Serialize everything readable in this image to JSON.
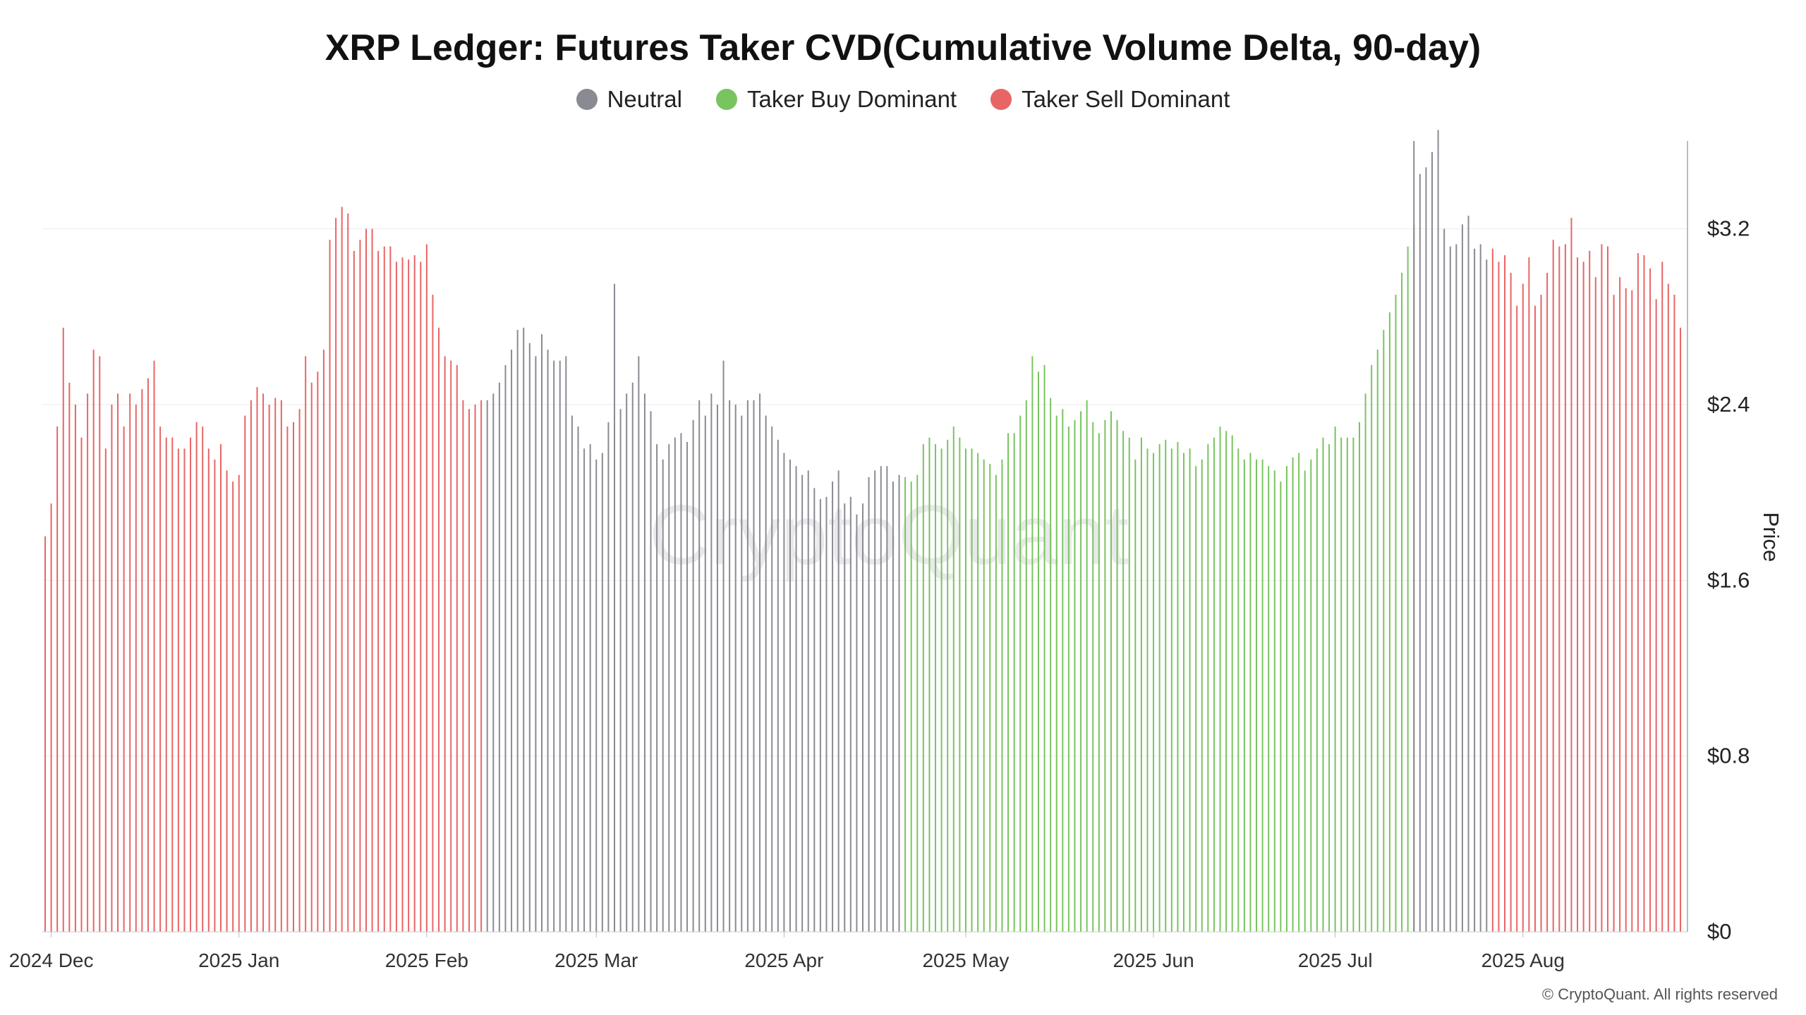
{
  "chart_data": {
    "type": "bar",
    "title": "XRP Ledger: Futures Taker CVD(Cumulative Volume Delta, 90-day)",
    "ylabel": "Price",
    "xlabel": "",
    "ylim": [
      0,
      3.6
    ],
    "yticks": [
      {
        "v": 0,
        "label": "$0"
      },
      {
        "v": 0.8,
        "label": "$0.8"
      },
      {
        "v": 1.6,
        "label": "$1.6"
      },
      {
        "v": 2.4,
        "label": "$2.4"
      },
      {
        "v": 3.2,
        "label": "$3.2"
      }
    ],
    "xticks": [
      {
        "date": "2024-12-01",
        "label": "2024 Dec"
      },
      {
        "date": "2025-01-01",
        "label": "2025 Jan"
      },
      {
        "date": "2025-02-01",
        "label": "2025 Feb"
      },
      {
        "date": "2025-03-01",
        "label": "2025 Mar"
      },
      {
        "date": "2025-04-01",
        "label": "2025 Apr"
      },
      {
        "date": "2025-05-01",
        "label": "2025 May"
      },
      {
        "date": "2025-06-01",
        "label": "2025 Jun"
      },
      {
        "date": "2025-07-01",
        "label": "2025 Jul"
      },
      {
        "date": "2025-08-01",
        "label": "2025 Aug"
      }
    ],
    "grid": true,
    "legend_position": "top-center",
    "series": [
      {
        "name": "Neutral",
        "color": "#8a8a93"
      },
      {
        "name": "Taker Buy Dominant",
        "color": "#78c45f"
      },
      {
        "name": "Taker Sell Dominant",
        "color": "#e86565"
      }
    ],
    "segments": [
      {
        "series": "Taker Sell Dominant",
        "start": "2024-11-30",
        "values": [
          1.8,
          1.95,
          2.3,
          2.75,
          2.5,
          2.4,
          2.25,
          2.45,
          2.65,
          2.62,
          2.2,
          2.4,
          2.45,
          2.3,
          2.45,
          2.4,
          2.47,
          2.52,
          2.6,
          2.3,
          2.25,
          2.25,
          2.2,
          2.2,
          2.25,
          2.32,
          2.3,
          2.2,
          2.15,
          2.22,
          2.1,
          2.05,
          2.08,
          2.35,
          2.42,
          2.48,
          2.45,
          2.4,
          2.43,
          2.42,
          2.3,
          2.32,
          2.38,
          2.62,
          2.5,
          2.55,
          2.65,
          3.15,
          3.25,
          3.3,
          3.27,
          3.1,
          3.15,
          3.2,
          3.2,
          3.1,
          3.12,
          3.12,
          3.05,
          3.07,
          3.06,
          3.08,
          3.05,
          3.13,
          2.9,
          2.75,
          2.62,
          2.6,
          2.58,
          2.42,
          2.38,
          2.4,
          2.42
        ]
      },
      {
        "series": "Neutral",
        "start": "2025-02-11",
        "values": [
          2.42,
          2.45,
          2.5,
          2.58,
          2.65,
          2.74,
          2.75,
          2.68,
          2.62,
          2.72,
          2.65,
          2.6,
          2.6,
          2.62,
          2.35,
          2.3,
          2.2,
          2.22,
          2.15,
          2.18,
          2.32,
          2.95,
          2.38,
          2.45,
          2.5,
          2.62,
          2.45,
          2.37,
          2.22,
          2.15,
          2.22,
          2.25,
          2.27,
          2.23,
          2.33,
          2.42,
          2.35,
          2.45,
          2.4,
          2.6,
          2.42,
          2.4,
          2.35,
          2.42,
          2.42,
          2.45,
          2.35,
          2.3,
          2.24,
          2.18,
          2.15,
          2.12,
          2.08,
          2.1,
          2.02,
          1.97,
          1.98,
          2.05,
          2.1,
          1.95,
          1.98,
          1.9,
          1.95,
          2.07,
          2.1,
          2.12,
          2.12,
          2.05,
          2.08
        ]
      },
      {
        "series": "Taker Buy Dominant",
        "start": "2025-04-21",
        "values": [
          2.07,
          2.05,
          2.08,
          2.22,
          2.25,
          2.22,
          2.2,
          2.24,
          2.3,
          2.25,
          2.2,
          2.2,
          2.18,
          2.15,
          2.13,
          2.08,
          2.15,
          2.27,
          2.27,
          2.35,
          2.42,
          2.62,
          2.55,
          2.58,
          2.43,
          2.35,
          2.38,
          2.3,
          2.33,
          2.37,
          2.42,
          2.32,
          2.27,
          2.33,
          2.37,
          2.33,
          2.28,
          2.25,
          2.15,
          2.25,
          2.2,
          2.18,
          2.22,
          2.24,
          2.2,
          2.23,
          2.18,
          2.2,
          2.12,
          2.15,
          2.22,
          2.25,
          2.3,
          2.28,
          2.26,
          2.2,
          2.15,
          2.18,
          2.15,
          2.15,
          2.12,
          2.1,
          2.05,
          2.12,
          2.16,
          2.18,
          2.1,
          2.15,
          2.2,
          2.25,
          2.22,
          2.3,
          2.25,
          2.25,
          2.25,
          2.32,
          2.45,
          2.58,
          2.65,
          2.74,
          2.82,
          2.9,
          3.0,
          3.12,
          3.22
        ]
      },
      {
        "series": "Neutral",
        "start": "2025-07-14",
        "values": [
          3.6,
          3.45,
          3.48,
          3.55,
          3.65,
          3.2,
          3.12,
          3.13,
          3.22,
          3.26,
          3.11,
          3.13,
          3.06
        ]
      },
      {
        "series": "Taker Sell Dominant",
        "start": "2025-07-27",
        "values": [
          3.11,
          3.05,
          3.08,
          3.0,
          2.85,
          2.95,
          3.07,
          2.85,
          2.9,
          3.0,
          3.15,
          3.12,
          3.13,
          3.25,
          3.07,
          3.05,
          3.1,
          2.98,
          3.13,
          3.12,
          2.9,
          2.98,
          2.93,
          2.92,
          3.09,
          3.08,
          3.02,
          2.88,
          3.05,
          2.95,
          2.9,
          2.75
        ]
      }
    ]
  },
  "footer": {
    "copyright": "© CryptoQuant. All rights reserved",
    "watermark": "CryptoQuant"
  }
}
